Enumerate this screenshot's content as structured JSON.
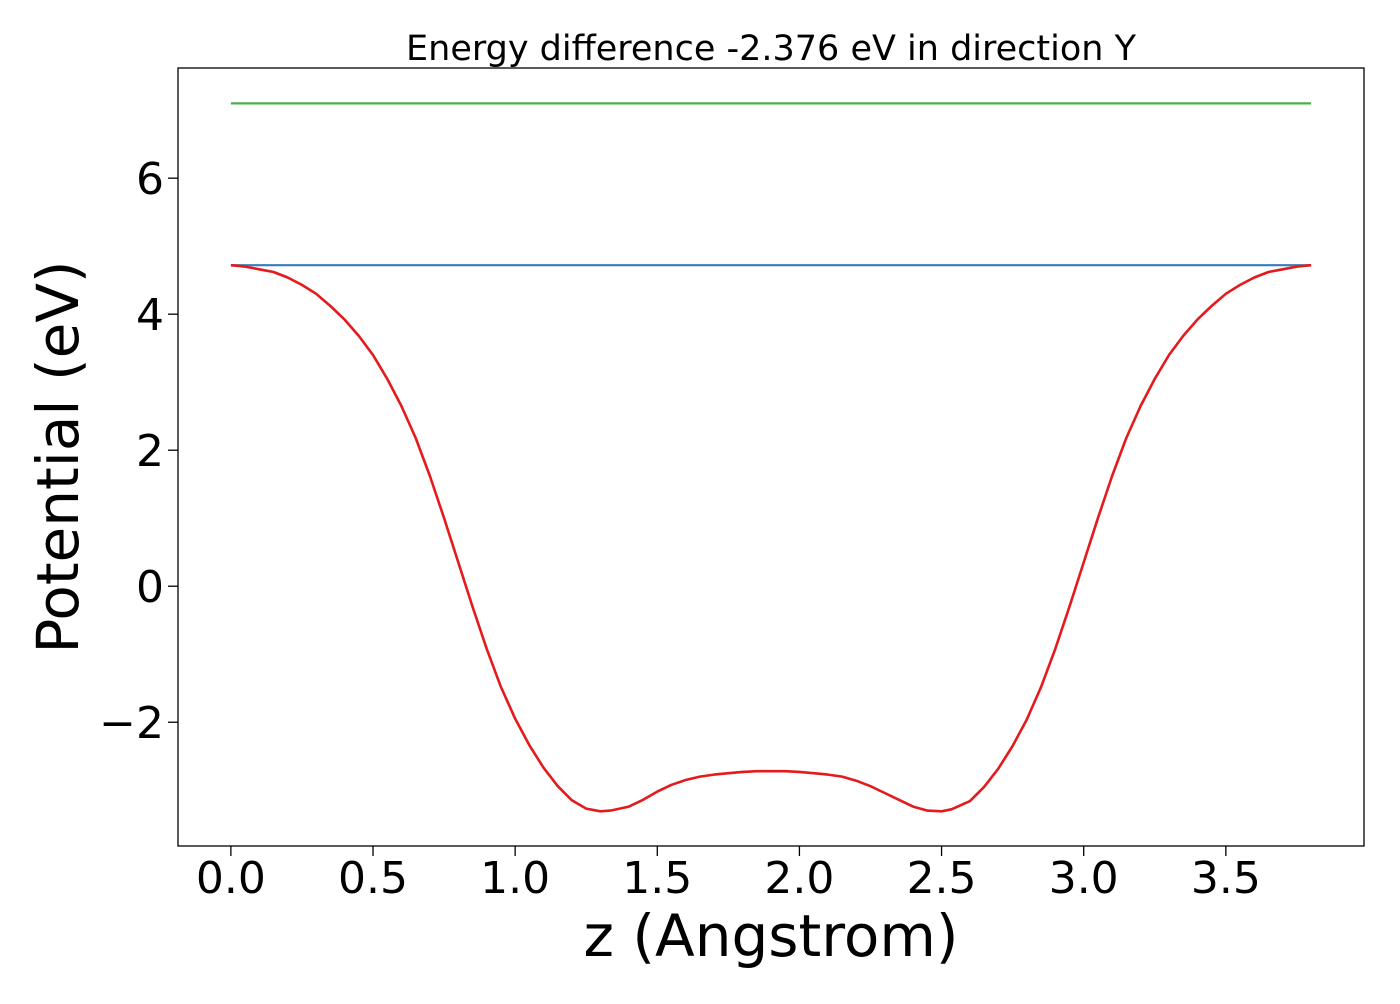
{
  "chart_data": {
    "type": "line",
    "title": "Energy difference -2.376 eV in direction Y",
    "xlabel": "z (Angstrom)",
    "ylabel": "Potential (eV)",
    "xlim": [
      -0.186,
      3.986
    ],
    "ylim": [
      -3.82,
      7.62
    ],
    "xticks": [
      0.0,
      0.5,
      1.0,
      1.5,
      2.0,
      2.5,
      3.0,
      3.5
    ],
    "xtick_labels": [
      "0.0",
      "0.5",
      "1.0",
      "1.5",
      "2.0",
      "2.5",
      "3.0",
      "3.5"
    ],
    "yticks": [
      -2,
      0,
      2,
      4,
      6
    ],
    "ytick_labels": [
      "−2",
      "0",
      "2",
      "4",
      "6"
    ],
    "grid": false,
    "series": [
      {
        "color": "#4daf4a",
        "x": [
          0.0,
          3.8
        ],
        "y": [
          7.1,
          7.1
        ]
      },
      {
        "color": "#377eb8",
        "x": [
          0.0,
          3.8
        ],
        "y": [
          4.72,
          4.72
        ]
      },
      {
        "color": "#e41a1c",
        "x": [
          0.0,
          0.05,
          0.1,
          0.15,
          0.2,
          0.25,
          0.3,
          0.35,
          0.4,
          0.45,
          0.5,
          0.55,
          0.6,
          0.65,
          0.7,
          0.75,
          0.8,
          0.85,
          0.9,
          0.95,
          1.0,
          1.05,
          1.1,
          1.15,
          1.2,
          1.25,
          1.3,
          1.335,
          1.4,
          1.45,
          1.5,
          1.55,
          1.6,
          1.65,
          1.7,
          1.75,
          1.8,
          1.85,
          1.9,
          1.95,
          2.0,
          2.05,
          2.1,
          2.15,
          2.2,
          2.25,
          2.3,
          2.35,
          2.4,
          2.45,
          2.5,
          2.535,
          2.6,
          2.65,
          2.7,
          2.75,
          2.8,
          2.85,
          2.9,
          2.95,
          3.0,
          3.05,
          3.1,
          3.15,
          3.2,
          3.25,
          3.3,
          3.35,
          3.4,
          3.45,
          3.5,
          3.55,
          3.6,
          3.65,
          3.7,
          3.75,
          3.8
        ],
        "y": [
          4.72,
          4.7,
          4.66,
          4.62,
          4.54,
          4.43,
          4.3,
          4.12,
          3.92,
          3.68,
          3.4,
          3.05,
          2.65,
          2.18,
          1.62,
          1.0,
          0.35,
          -0.3,
          -0.92,
          -1.48,
          -1.95,
          -2.34,
          -2.67,
          -2.94,
          -3.15,
          -3.27,
          -3.31,
          -3.3,
          -3.24,
          -3.14,
          -3.02,
          -2.92,
          -2.85,
          -2.8,
          -2.77,
          -2.75,
          -2.73,
          -2.72,
          -2.72,
          -2.72,
          -2.73,
          -2.75,
          -2.77,
          -2.8,
          -2.86,
          -2.94,
          -3.04,
          -3.14,
          -3.24,
          -3.3,
          -3.31,
          -3.28,
          -3.16,
          -2.95,
          -2.68,
          -2.35,
          -1.96,
          -1.48,
          -0.92,
          -0.3,
          0.35,
          1.0,
          1.62,
          2.18,
          2.65,
          3.05,
          3.4,
          3.68,
          3.92,
          4.12,
          4.3,
          4.43,
          4.54,
          4.62,
          4.66,
          4.7,
          4.72
        ]
      }
    ]
  }
}
